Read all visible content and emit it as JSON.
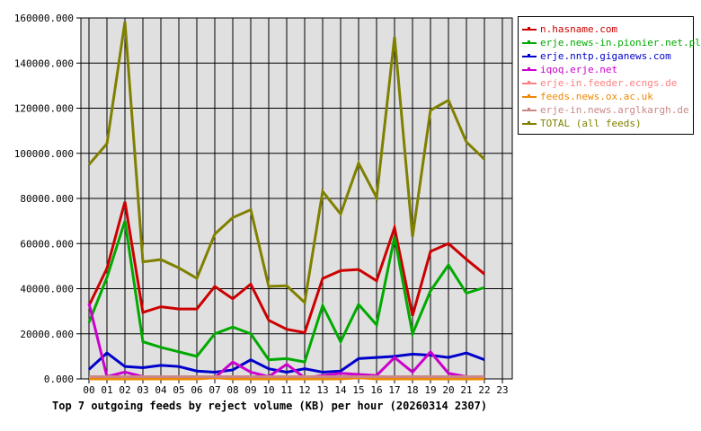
{
  "chart_data": {
    "type": "line",
    "title": "Top 7 outgoing feeds by reject volume (KB) per hour (20260314 2307)",
    "xlabel": "",
    "ylabel": "",
    "ylim": [
      0,
      160000
    ],
    "yticks": [
      "0.000",
      "20000.000",
      "40000.000",
      "60000.000",
      "80000.000",
      "100000.000",
      "120000.000",
      "140000.000",
      "160000.000"
    ],
    "x": [
      "00",
      "01",
      "02",
      "03",
      "04",
      "05",
      "06",
      "07",
      "08",
      "09",
      "10",
      "11",
      "12",
      "13",
      "14",
      "15",
      "16",
      "17",
      "18",
      "19",
      "20",
      "21",
      "22",
      "23"
    ],
    "grid": true,
    "legend_position": "right",
    "series": [
      {
        "name": "n.hasname.com",
        "color": "#cc0000",
        "values": [
          32500,
          49000,
          78500,
          29500,
          32000,
          31000,
          31000,
          41000,
          35500,
          42000,
          26000,
          22000,
          20500,
          44500,
          48000,
          48500,
          43500,
          67000,
          28000,
          56500,
          60000,
          53000,
          46500
        ]
      },
      {
        "name": "erje.news-in.pionier.net.pl",
        "color": "#00aa00",
        "values": [
          25000,
          45000,
          70000,
          16500,
          14000,
          12000,
          10000,
          20000,
          23000,
          20000,
          8500,
          9000,
          7500,
          32500,
          16500,
          33000,
          24000,
          63000,
          20000,
          39000,
          50500,
          38000,
          40500
        ]
      },
      {
        "name": "erje.nntp.giganews.com",
        "color": "#0000cc",
        "values": [
          4200,
          11500,
          5500,
          5000,
          6000,
          5500,
          3500,
          3000,
          4000,
          8500,
          4500,
          3000,
          4500,
          3000,
          3500,
          9000,
          9500,
          10000,
          11000,
          10500,
          9500,
          11500,
          8500
        ]
      },
      {
        "name": "iqoq.erje.net",
        "color": "#cc00cc",
        "values": [
          33500,
          1000,
          3000,
          1000,
          500,
          500,
          500,
          500,
          7500,
          3000,
          1000,
          6500,
          500,
          1500,
          2500,
          2000,
          1500,
          9500,
          3000,
          12000,
          2500,
          1000,
          1000
        ]
      },
      {
        "name": "erje-in.feeder.ecngs.de",
        "color": "#ff8080",
        "values": [
          500,
          500,
          500,
          500,
          500,
          500,
          500,
          500,
          500,
          500,
          500,
          500,
          500,
          500,
          500,
          500,
          500,
          500,
          500,
          500,
          500,
          500,
          500
        ]
      },
      {
        "name": "feeds.news.ox.ac.uk",
        "color": "#ee8800",
        "values": [
          0,
          0,
          0,
          0,
          0,
          0,
          0,
          500,
          0,
          0,
          0,
          0,
          0,
          0,
          0,
          500,
          0,
          0,
          0,
          0,
          0,
          0,
          0
        ]
      },
      {
        "name": "erje-in.news.arglkargh.de",
        "color": "#cc8888",
        "values": [
          1000,
          1000,
          1000,
          1000,
          1000,
          1000,
          1000,
          1000,
          1000,
          1000,
          1000,
          1000,
          1000,
          1000,
          1000,
          1000,
          1000,
          1000,
          1000,
          1000,
          1000,
          1000,
          1000
        ]
      },
      {
        "name": "TOTAL (all feeds)",
        "color": "#808000",
        "values": [
          95000,
          104300,
          158300,
          51900,
          52900,
          49200,
          44600,
          64200,
          71500,
          75000,
          41000,
          41300,
          33900,
          83100,
          73100,
          95600,
          80400,
          151600,
          63000,
          119100,
          123500,
          105000,
          97400
        ]
      }
    ]
  }
}
